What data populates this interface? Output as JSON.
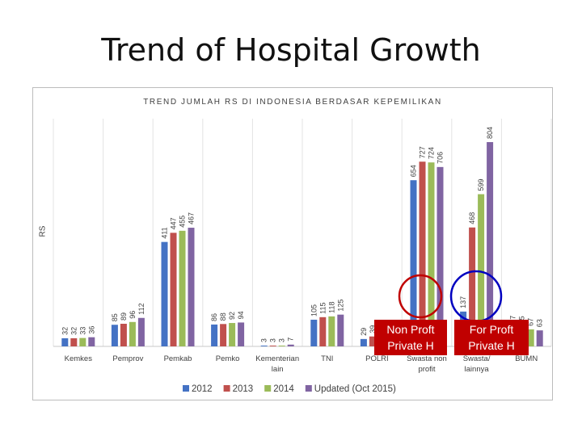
{
  "slide_title": "Trend of Hospital Growth",
  "chart_data": {
    "type": "bar",
    "title": "TREND JUMLAH RS DI INDONESIA BERDASAR KEPEMILIKAN",
    "xlabel": "",
    "ylabel": "RS",
    "categories": [
      "Kemkes",
      "Pemprov",
      "Pemkab",
      "Pemko",
      "Kementerian lain",
      "TNI",
      "POLRI",
      "Swasta non profit",
      "Swasta/ lainnya",
      "BUMN"
    ],
    "category_lines": [
      [
        "Kemkes"
      ],
      [
        "Pemprov"
      ],
      [
        "Pemkab"
      ],
      [
        "Pemko"
      ],
      [
        "Kementerian",
        "lain"
      ],
      [
        "TNI"
      ],
      [
        "POLRI"
      ],
      [
        "Swasta non",
        "profit"
      ],
      [
        "Swasta/",
        "lainnya"
      ],
      [
        "BUMN"
      ]
    ],
    "series": [
      {
        "name": "2012",
        "color": "#4472c4",
        "values": [
          32,
          85,
          411,
          86,
          3,
          105,
          29,
          654,
          137,
          77
        ]
      },
      {
        "name": "2013",
        "color": "#c0504d",
        "values": [
          32,
          89,
          447,
          88,
          3,
          115,
          39,
          727,
          468,
          75
        ]
      },
      {
        "name": "2014",
        "color": "#9bbb59",
        "values": [
          33,
          96,
          455,
          92,
          3,
          118,
          40,
          724,
          599,
          67
        ]
      },
      {
        "name": "Updated (Oct 2015)",
        "color": "#8064a2",
        "values": [
          36,
          112,
          467,
          94,
          7,
          125,
          42,
          706,
          804,
          63
        ]
      }
    ],
    "ylim": [
      0,
      804
    ],
    "grid": "vertical category separators",
    "legend": "bottom",
    "annotations": [
      {
        "text": "Non Proft Private H",
        "lines": [
          "Non Proft",
          "Private H"
        ],
        "circle_color": "#c00000"
      },
      {
        "text": "For Proft Private H",
        "lines": [
          "For Proft",
          "Private H"
        ],
        "circle_color": "#0000c0"
      }
    ]
  }
}
